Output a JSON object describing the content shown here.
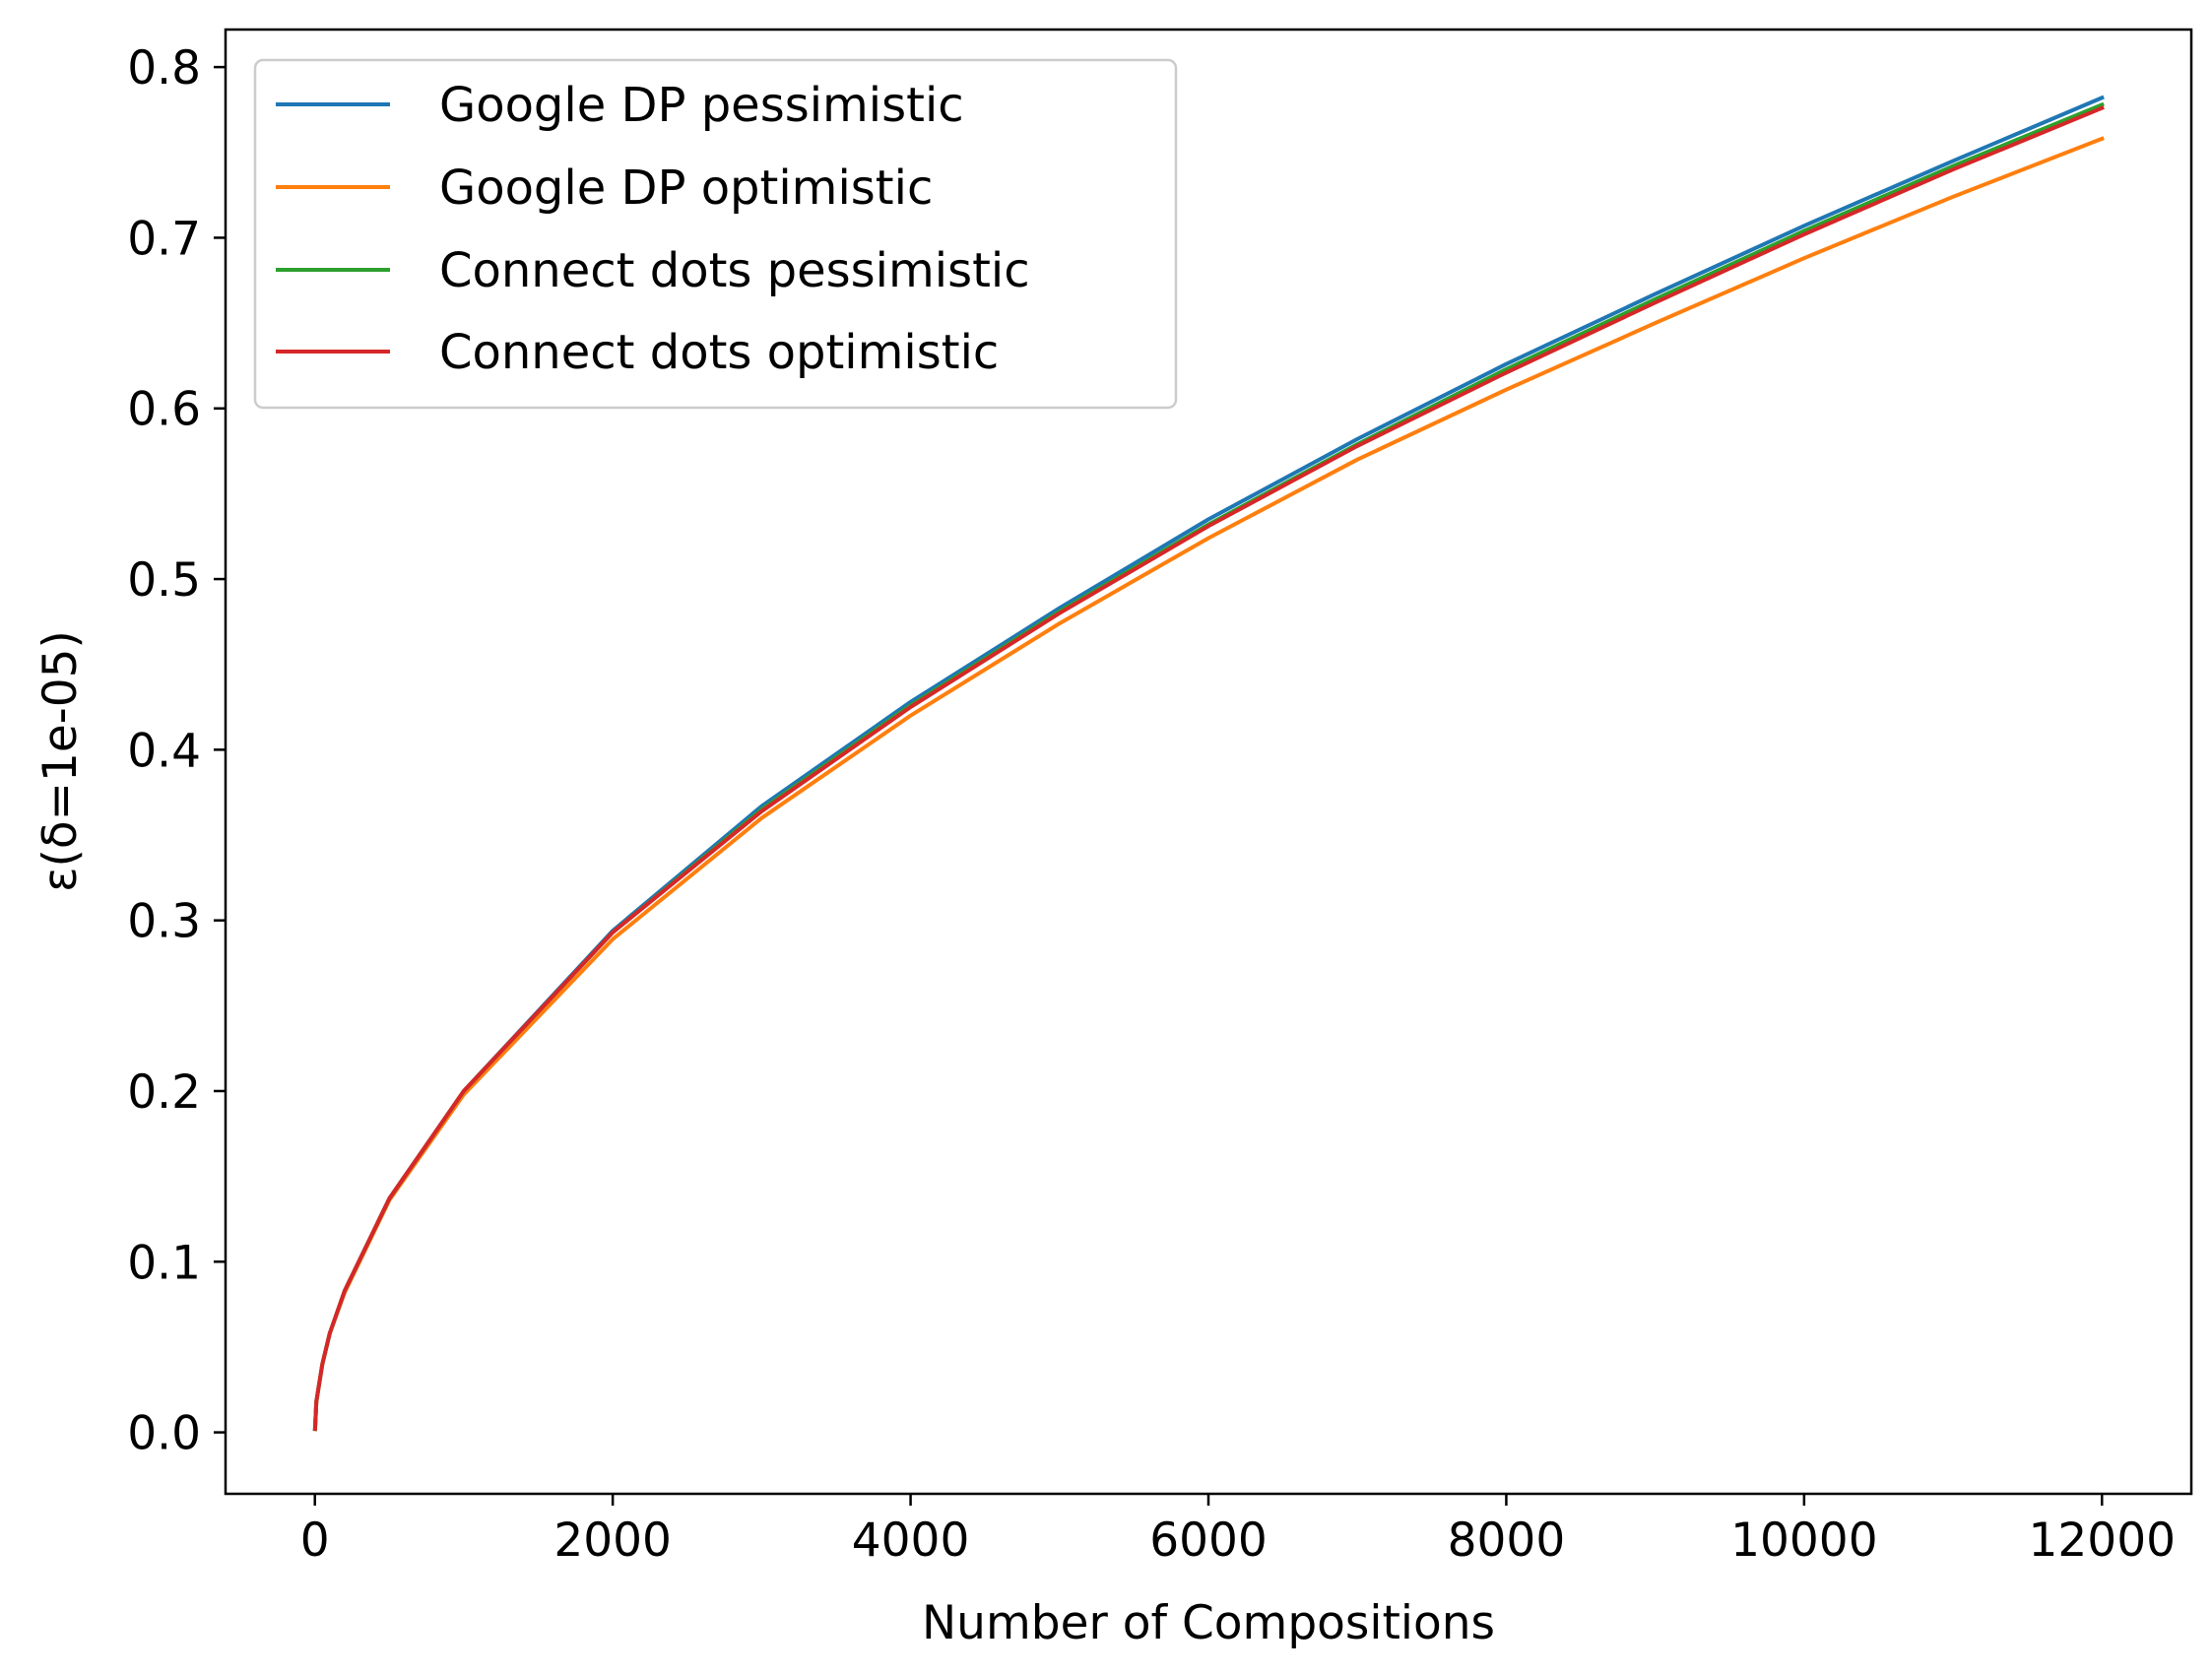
{
  "chart_data": {
    "type": "line",
    "xlabel": "Number of Compositions",
    "ylabel": "ε(δ=1e-05)",
    "xlim": [
      -600,
      12600
    ],
    "ylim": [
      -0.036,
      0.822
    ],
    "xticks": [
      0,
      2000,
      4000,
      6000,
      8000,
      10000,
      12000
    ],
    "xtick_labels": [
      "0",
      "2000",
      "4000",
      "6000",
      "8000",
      "10000",
      "12000"
    ],
    "yticks": [
      0.0,
      0.1,
      0.2,
      0.3,
      0.4,
      0.5,
      0.6,
      0.7,
      0.8
    ],
    "ytick_labels": [
      "0.0",
      "0.1",
      "0.2",
      "0.3",
      "0.4",
      "0.5",
      "0.6",
      "0.7",
      "0.8"
    ],
    "grid": false,
    "legend_position": "upper-left",
    "x": [
      1,
      10,
      50,
      100,
      200,
      500,
      1000,
      2000,
      3000,
      4000,
      5000,
      6000,
      7000,
      8000,
      9000,
      10000,
      11000,
      12000
    ],
    "series": [
      {
        "name": "Google DP pessimistic",
        "color": "#1f77b4",
        "values": [
          0.002,
          0.018,
          0.04,
          0.058,
          0.083,
          0.137,
          0.2,
          0.294,
          0.367,
          0.428,
          0.483,
          0.535,
          0.582,
          0.626,
          0.667,
          0.707,
          0.745,
          0.782
        ]
      },
      {
        "name": "Google DP optimistic",
        "color": "#ff7f0e",
        "values": [
          0.002,
          0.018,
          0.04,
          0.058,
          0.082,
          0.136,
          0.198,
          0.289,
          0.36,
          0.42,
          0.474,
          0.524,
          0.57,
          0.611,
          0.65,
          0.688,
          0.724,
          0.758
        ]
      },
      {
        "name": "Connect dots pessimistic",
        "color": "#2ca02c",
        "values": [
          0.002,
          0.018,
          0.04,
          0.058,
          0.083,
          0.137,
          0.2,
          0.293,
          0.365,
          0.426,
          0.481,
          0.532,
          0.579,
          0.623,
          0.664,
          0.704,
          0.742,
          0.778
        ]
      },
      {
        "name": "Connect dots optimistic",
        "color": "#d62728",
        "values": [
          0.002,
          0.018,
          0.04,
          0.058,
          0.083,
          0.137,
          0.2,
          0.293,
          0.364,
          0.425,
          0.48,
          0.531,
          0.578,
          0.621,
          0.662,
          0.702,
          0.74,
          0.776
        ]
      }
    ]
  }
}
